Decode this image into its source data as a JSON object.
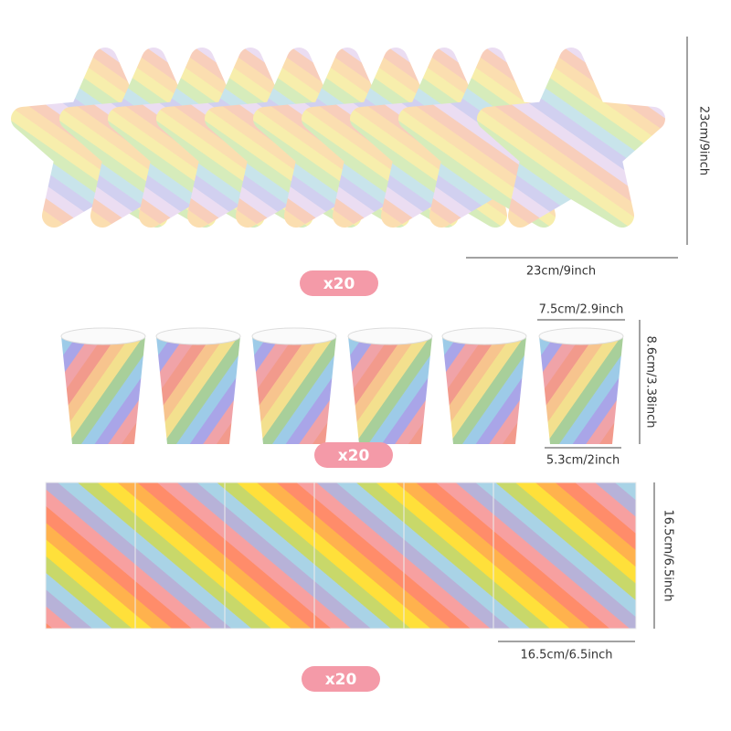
{
  "plates": {
    "count": "x20",
    "height": "23cm/9inch",
    "width": "23cm/9inch"
  },
  "cups": {
    "count": "x20",
    "top_diameter": "7.5cm/2.9inch",
    "height": "8.6cm/3.38inch",
    "bottom_diameter": "5.3cm/2inch"
  },
  "napkins": {
    "count": "x20",
    "height": "16.5cm/6.5inch",
    "width": "16.5cm/6.5inch"
  }
}
